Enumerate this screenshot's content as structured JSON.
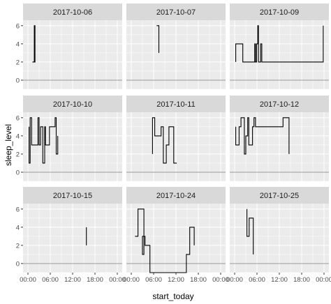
{
  "chart_data": {
    "type": "line",
    "style": "step",
    "xlabel": "start_today",
    "ylabel": "sleep_level",
    "x_ticks": [
      "00:00",
      "06:00",
      "12:00",
      "18:00",
      "00:00"
    ],
    "x_range_hours": [
      0,
      24
    ],
    "y_ticks": [
      0,
      2,
      4,
      6
    ],
    "y_range": [
      -1,
      6.6
    ],
    "zero_line": 0,
    "colors": {
      "panel_bg": "#ebebeb",
      "grid": "#ffffff",
      "strip_bg": "#d9d9d9",
      "line": "#000000",
      "zero_line": "#999999"
    },
    "facets": [
      {
        "label": "2017-10-06",
        "x": [
          1.2,
          1.7,
          1.7,
          1.9,
          1.9,
          2.0
        ],
        "y": [
          2,
          2,
          6,
          6,
          2,
          2
        ]
      },
      {
        "label": "2017-10-07",
        "x": [
          6.8,
          7.4,
          7.4
        ],
        "y": [
          6,
          6,
          3
        ]
      },
      {
        "label": "2017-10-09",
        "x": [
          0.3,
          0.3,
          2.2,
          2.2,
          5.4,
          5.4,
          5.6,
          5.6,
          5.9,
          5.9,
          6.2,
          6.2,
          6.4,
          6.4,
          7.0,
          7.0,
          7.3,
          7.3,
          23.8,
          23.8
        ],
        "y": [
          2,
          4,
          4,
          2,
          2,
          4,
          4,
          2,
          2,
          4,
          4,
          6,
          6,
          2,
          2,
          4,
          4,
          2,
          2,
          6
        ]
      },
      {
        "label": "2017-10-10",
        "x": [
          0.3,
          0.3,
          0.6,
          0.6,
          1.0,
          1.0,
          2.7,
          2.7,
          3.0,
          3.0,
          3.4,
          3.4,
          4.0,
          4.0,
          4.5,
          4.5,
          4.7,
          4.7,
          5.8,
          5.8,
          7.3,
          7.3,
          7.6,
          7.6,
          8.0,
          8.0
        ],
        "y": [
          5,
          1,
          1,
          6,
          6,
          3,
          3,
          6,
          6,
          3,
          3,
          5,
          5,
          1,
          1,
          5,
          5,
          3,
          3,
          5,
          5,
          6,
          6,
          2,
          2,
          4
        ]
      },
      {
        "label": "2017-10-11",
        "x": [
          5.7,
          5.7,
          6.3,
          6.3,
          8.0,
          8.0,
          8.6,
          8.6,
          9.4,
          9.4,
          10.1,
          10.1,
          11.4,
          11.4,
          12.2
        ],
        "y": [
          2,
          6,
          6,
          4,
          4,
          5,
          5,
          1,
          1,
          3,
          3,
          5,
          5,
          1,
          1
        ]
      },
      {
        "label": "2017-10-12",
        "x": [
          0.3,
          0.3,
          1.2,
          1.2,
          1.7,
          1.7,
          2.6,
          2.6,
          3.0,
          3.0,
          3.5,
          3.5,
          3.8,
          3.8,
          4.8,
          4.8,
          5.2,
          5.2,
          5.6,
          5.6,
          13.0,
          13.0,
          14.6,
          14.6
        ],
        "y": [
          5,
          3,
          3,
          5,
          5,
          6,
          6,
          2,
          2,
          4,
          4,
          6,
          6,
          3,
          3,
          5,
          5,
          6,
          6,
          5,
          5,
          6,
          6,
          2
        ]
      },
      {
        "label": "2017-10-15",
        "x": [
          15.7,
          15.7
        ],
        "y": [
          4,
          2
        ]
      },
      {
        "label": "2017-10-24",
        "x": [
          1.0,
          1.8,
          1.8,
          3.4,
          3.4,
          3.0,
          3.0,
          3.7,
          3.7,
          5.0,
          5.0,
          14.8,
          14.8,
          15.7,
          15.7,
          16.9,
          16.9
        ],
        "y": [
          3,
          3,
          6,
          6,
          1,
          1,
          3,
          3,
          2,
          2,
          -1,
          -1,
          1,
          1,
          4,
          4,
          2
        ]
      },
      {
        "label": "2017-10-25",
        "x": [
          3.3,
          3.3,
          3.9,
          3.9,
          5.0,
          5.0
        ],
        "y": [
          6,
          3,
          3,
          5,
          5,
          1
        ]
      }
    ]
  }
}
